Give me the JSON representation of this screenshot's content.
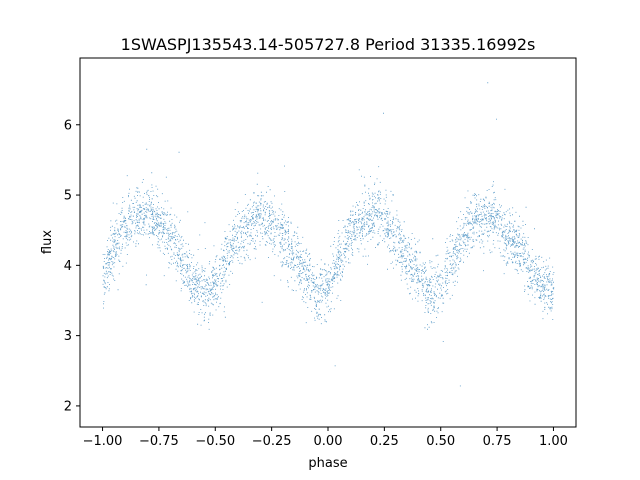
{
  "chart_data": {
    "type": "scatter",
    "title": "1SWASPJ135543.14-505727.8 Period 31335.16992s",
    "xlabel": "phase",
    "ylabel": "flux",
    "xlim": [
      -1.1,
      1.1
    ],
    "ylim": [
      1.7,
      6.95
    ],
    "xticks": [
      -1.0,
      -0.75,
      -0.5,
      -0.25,
      0.0,
      0.25,
      0.5,
      0.75,
      1.0
    ],
    "xtick_labels": [
      "−1.00",
      "−0.75",
      "−0.50",
      "−0.25",
      "0.00",
      "0.25",
      "0.50",
      "0.75",
      "1.00"
    ],
    "yticks": [
      2,
      3,
      4,
      5,
      6
    ],
    "ytick_labels": [
      "2",
      "3",
      "4",
      "5",
      "6"
    ],
    "grid": false,
    "point_color": "#1f77b4",
    "series": [
      {
        "name": "",
        "x": [
          -1.0,
          -0.95,
          -0.9,
          -0.85,
          -0.8,
          -0.75,
          -0.7,
          -0.65,
          -0.6,
          -0.55,
          -0.5,
          -0.45,
          -0.4,
          -0.35,
          -0.3,
          -0.25,
          -0.2,
          -0.15,
          -0.1,
          -0.05,
          0.0,
          0.05,
          0.1,
          0.15,
          0.2,
          0.25,
          0.3,
          0.35,
          0.4,
          0.45,
          0.5,
          0.55,
          0.6,
          0.65,
          0.7,
          0.75,
          0.8,
          0.85,
          0.9,
          0.95,
          1.0
        ],
        "y": [
          3.85,
          4.25,
          4.55,
          4.7,
          4.75,
          4.65,
          4.4,
          4.1,
          3.8,
          3.6,
          3.75,
          4.1,
          4.4,
          4.6,
          4.7,
          4.6,
          4.4,
          4.1,
          3.85,
          3.6,
          3.75,
          4.1,
          4.45,
          4.65,
          4.75,
          4.65,
          4.4,
          4.1,
          3.85,
          3.6,
          3.75,
          4.1,
          4.45,
          4.65,
          4.7,
          4.6,
          4.45,
          4.2,
          3.9,
          3.7,
          3.65
        ],
        "scatter_sd": 0.2,
        "point_count": 12000
      }
    ]
  }
}
